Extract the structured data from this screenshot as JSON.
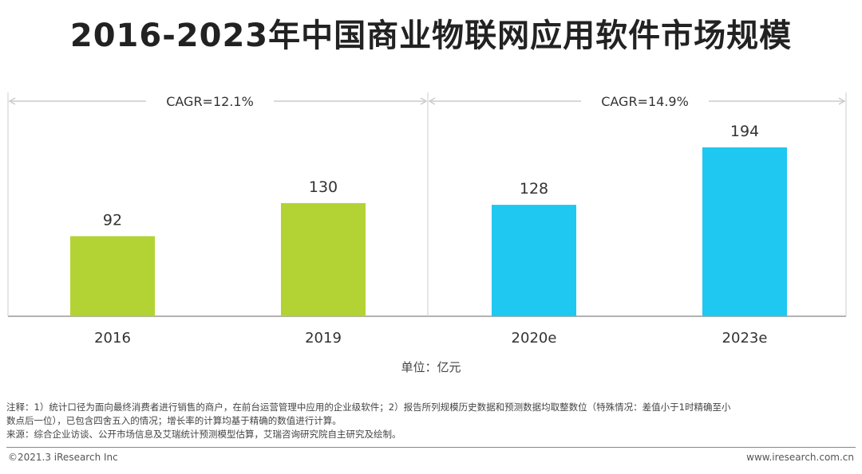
{
  "title": "2016-2023年中国商业物联网应用软件市场规模",
  "unit_label": "单位：亿元",
  "colors": {
    "historical": "#B3D334",
    "forecast": "#1FC8F0",
    "axis": "#999999",
    "bracket": "#CCCCCC"
  },
  "chart_data": {
    "type": "bar",
    "title": "2016-2023年中国商业物联网应用软件市场规模",
    "categories": [
      "2016",
      "2019",
      "2020e",
      "2023e"
    ],
    "values": [
      92,
      130,
      128,
      194
    ],
    "data_labels": [
      "92",
      "130",
      "128",
      "194"
    ],
    "ylim": [
      0,
      222
    ],
    "grid": false,
    "annotations": [
      {
        "text": "CAGR=12.1%",
        "span": [
          "2016",
          "2019"
        ]
      },
      {
        "text": "CAGR=14.9%",
        "span": [
          "2020e",
          "2023e"
        ]
      }
    ]
  },
  "notes": [
    "注释：1）统计口径为面向最终消费者进行销售的商户，在前台运营管理中应用的企业级软件；2）报告所列规模历史数据和预测数据均取整数位（特殊情况：差值小于1时精确至小",
    "数点后一位），已包含四舍五入的情况；增长率的计算均基于精确的数值进行计算。",
    "来源：综合企业访谈、公开市场信息及艾瑞统计预测模型估算，艾瑞咨询研究院自主研究及绘制。"
  ],
  "footer": {
    "copyright": "©2021.3 iResearch Inc",
    "website": "www.iresearch.com.cn"
  }
}
